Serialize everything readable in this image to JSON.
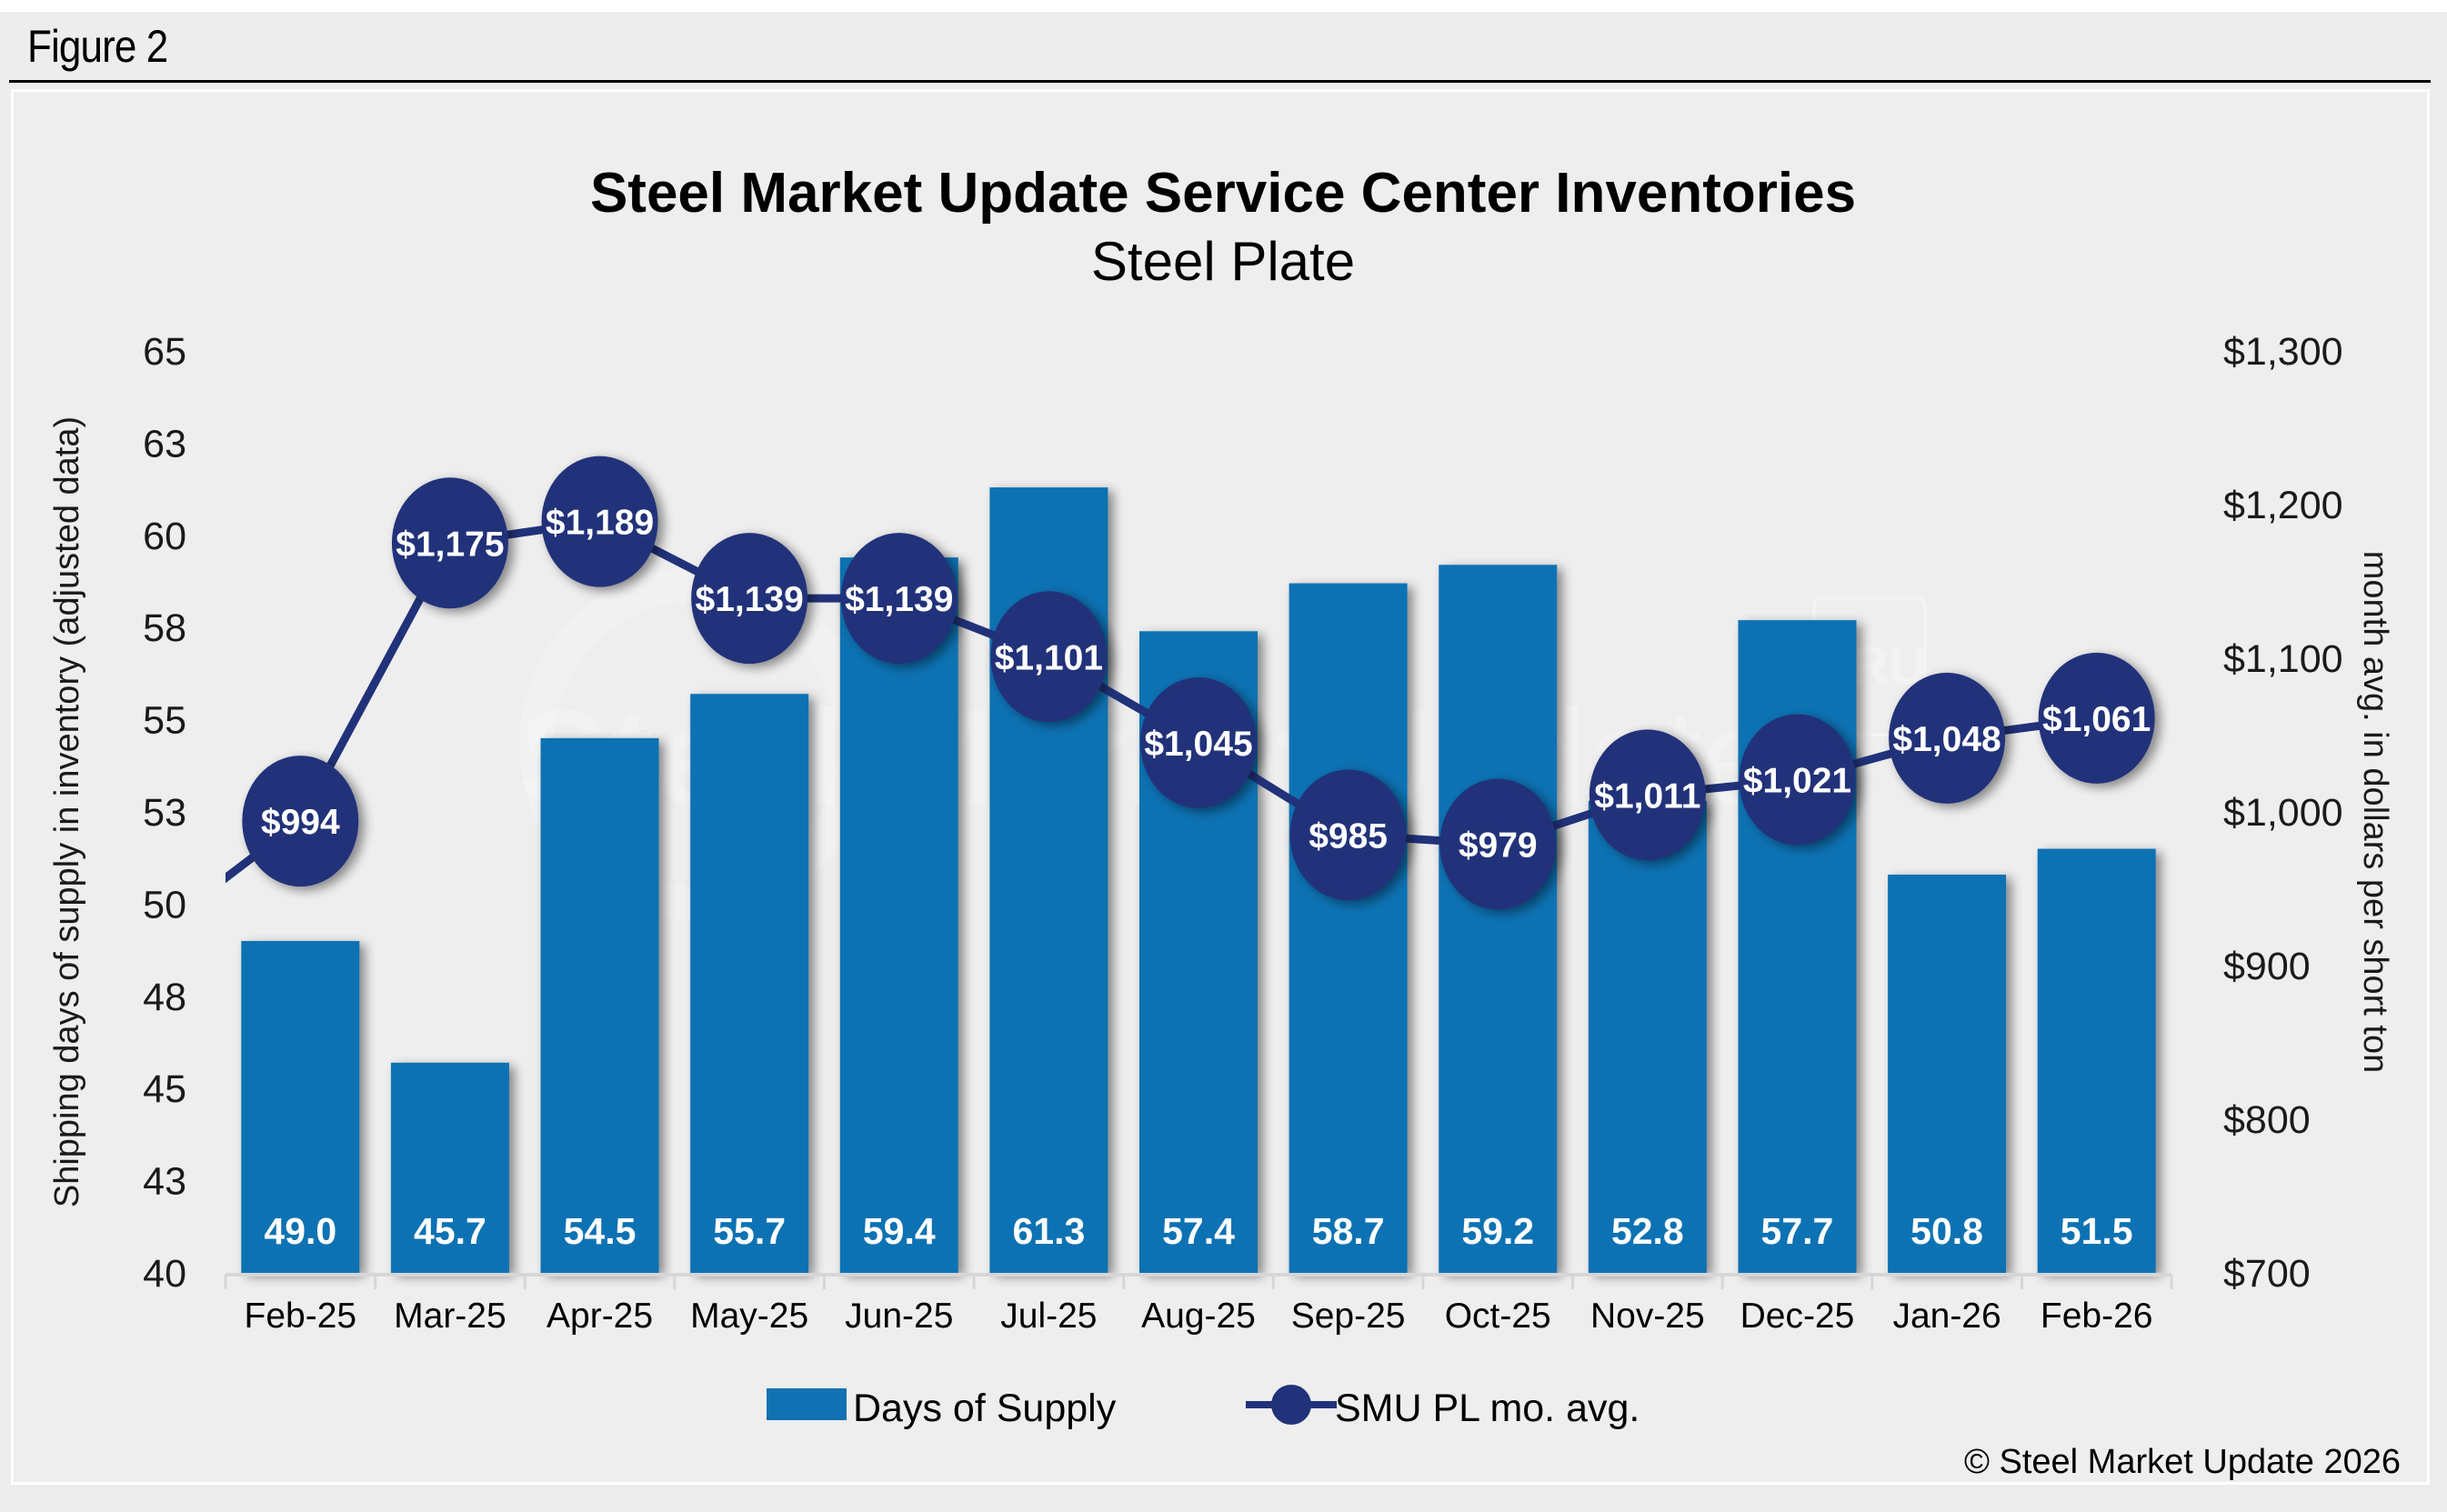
{
  "figure_label": "Figure 2",
  "copyright": "© Steel Market Update 2026",
  "watermark": {
    "text_bold": "Steel Market",
    "text_light": "Update",
    "badge": "CRU"
  },
  "colors": {
    "bar": "#1172b3",
    "line": "#21327a",
    "background": "#eeeeee",
    "bar_label": "#ffffff"
  },
  "chart_data": {
    "type": "bar",
    "title": "Steel Market Update Service Center Inventories",
    "subtitle": "Steel Plate",
    "xlabel": "",
    "ylabel": "Shipping days of supply in inventory (adjusted data)",
    "y2label": "month avg. in dollars per short ton",
    "ylim": [
      40,
      65
    ],
    "y2lim": [
      700,
      1300
    ],
    "grid": false,
    "legend_position": "bottom",
    "y_ticks": [
      40,
      42.5,
      45,
      47.5,
      50,
      52.5,
      55,
      57.5,
      60,
      62.5,
      65
    ],
    "y_tick_labels": [
      "40",
      "43",
      "45",
      "48",
      "50",
      "53",
      "55",
      "58",
      "60",
      "63",
      "65"
    ],
    "y2_ticks": [
      700,
      800,
      900,
      1000,
      1100,
      1200,
      1300
    ],
    "y2_tick_labels": [
      "$700",
      "$800",
      "$900",
      "$1,000",
      "$1,100",
      "$1,200",
      "$1,300"
    ],
    "categories": [
      "Feb-25",
      "Mar-25",
      "Apr-25",
      "May-25",
      "Jun-25",
      "Jul-25",
      "Aug-25",
      "Sep-25",
      "Oct-25",
      "Nov-25",
      "Dec-25",
      "Jan-26",
      "Feb-26"
    ],
    "series": [
      {
        "name": "Days of Supply",
        "type": "bar",
        "axis": "left",
        "values": [
          49.0,
          45.7,
          54.5,
          55.7,
          59.4,
          61.3,
          57.4,
          58.7,
          59.2,
          52.8,
          57.7,
          50.8,
          51.5
        ],
        "labels": [
          "49.0",
          "45.7",
          "54.5",
          "55.7",
          "59.4",
          "61.3",
          "57.4",
          "58.7",
          "59.2",
          "52.8",
          "57.7",
          "50.8",
          "51.5"
        ]
      },
      {
        "name": "SMU PL mo. avg.",
        "type": "line",
        "axis": "right",
        "values": [
          994,
          1175,
          1189,
          1139,
          1139,
          1101,
          1045,
          985,
          979,
          1011,
          1021,
          1048,
          1061
        ],
        "labels": [
          "$994",
          "$1,175",
          "$1,189",
          "$1,139",
          "$1,139",
          "$1,101",
          "$1,045",
          "$985",
          "$979",
          "$1,011",
          "$1,021",
          "$1,048",
          "$1,061"
        ],
        "entry_from_left_value": 920
      }
    ]
  }
}
